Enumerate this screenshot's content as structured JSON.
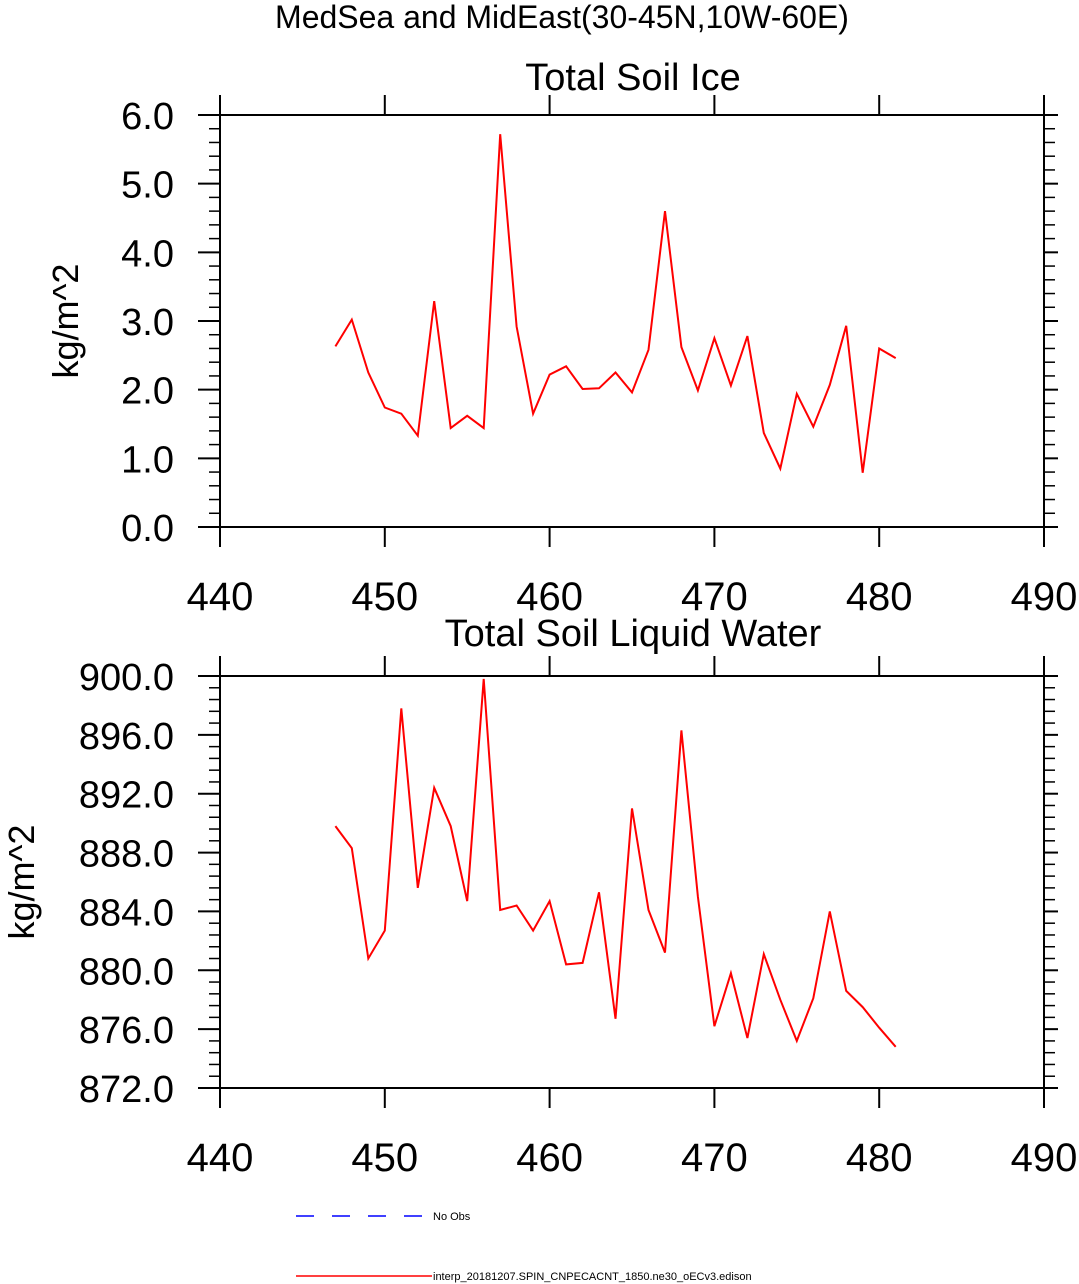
{
  "main_title": "MedSea and MidEast(30-45N,10W-60E)",
  "legend": {
    "obs_label": "No Obs",
    "model_label": "interp_20181207.SPIN_CNPECACNT_1850.ne30_oECv3.edison",
    "obs_color": "#0000ff",
    "model_color": "#ff0000"
  },
  "chart_data": [
    {
      "type": "line",
      "title": "Total Soil Ice",
      "ylabel": "kg/m^2",
      "xlabel": "",
      "xlim": [
        440,
        490
      ],
      "ylim": [
        0,
        6
      ],
      "xticks": [
        440,
        450,
        460,
        470,
        480,
        490
      ],
      "xtick_labels": [
        "440",
        "450",
        "460",
        "470",
        "480",
        "490"
      ],
      "yticks": [
        0,
        1,
        2,
        3,
        4,
        5,
        6
      ],
      "ytick_labels": [
        "0.0",
        "1.0",
        "2.0",
        "3.0",
        "4.0",
        "5.0",
        "6.0"
      ],
      "series": [
        {
          "name": "interp_20181207.SPIN_CNPECACNT_1850.ne30_oECv3.edison",
          "color": "#ff0000",
          "x": [
            447,
            448,
            449,
            450,
            451,
            452,
            453,
            454,
            455,
            456,
            457,
            458,
            459,
            460,
            461,
            462,
            463,
            464,
            465,
            466,
            467,
            468,
            469,
            470,
            471,
            472,
            473,
            474,
            475,
            476,
            477,
            478,
            479,
            480,
            481
          ],
          "values": [
            2.63,
            3.02,
            2.25,
            1.74,
            1.65,
            1.33,
            3.29,
            1.44,
            1.62,
            1.44,
            5.72,
            2.92,
            1.65,
            2.22,
            2.34,
            2.01,
            2.02,
            2.25,
            1.96,
            2.58,
            4.6,
            2.62,
            1.99,
            2.75,
            2.06,
            2.78,
            1.37,
            0.85,
            1.94,
            1.46,
            2.07,
            2.93,
            0.79,
            2.6,
            2.46
          ]
        }
      ]
    },
    {
      "type": "line",
      "title": "Total Soil Liquid Water",
      "ylabel": "kg/m^2",
      "xlabel": "",
      "xlim": [
        440,
        490
      ],
      "ylim": [
        872,
        900
      ],
      "xticks": [
        440,
        450,
        460,
        470,
        480,
        490
      ],
      "xtick_labels": [
        "440",
        "450",
        "460",
        "470",
        "480",
        "490"
      ],
      "yticks": [
        872,
        876,
        880,
        884,
        888,
        892,
        896,
        900
      ],
      "ytick_labels": [
        "872.0",
        "876.0",
        "880.0",
        "884.0",
        "888.0",
        "892.0",
        "896.0",
        "900.0"
      ],
      "series": [
        {
          "name": "interp_20181207.SPIN_CNPECACNT_1850.ne30_oECv3.edison",
          "color": "#ff0000",
          "x": [
            447,
            448,
            449,
            450,
            451,
            452,
            453,
            454,
            455,
            456,
            457,
            458,
            459,
            460,
            461,
            462,
            463,
            464,
            465,
            466,
            467,
            468,
            469,
            470,
            471,
            472,
            473,
            474,
            475,
            476,
            477,
            478,
            479,
            480,
            481
          ],
          "values": [
            889.8,
            888.3,
            880.8,
            882.7,
            897.8,
            885.6,
            892.4,
            889.8,
            884.7,
            899.8,
            884.1,
            884.4,
            882.7,
            884.7,
            880.4,
            880.5,
            885.3,
            876.7,
            891.0,
            884.1,
            881.2,
            896.3,
            885.0,
            876.2,
            879.8,
            875.4,
            881.1,
            878.0,
            875.2,
            878.1,
            884.0,
            878.6,
            877.5,
            876.1,
            874.8
          ]
        }
      ]
    }
  ]
}
